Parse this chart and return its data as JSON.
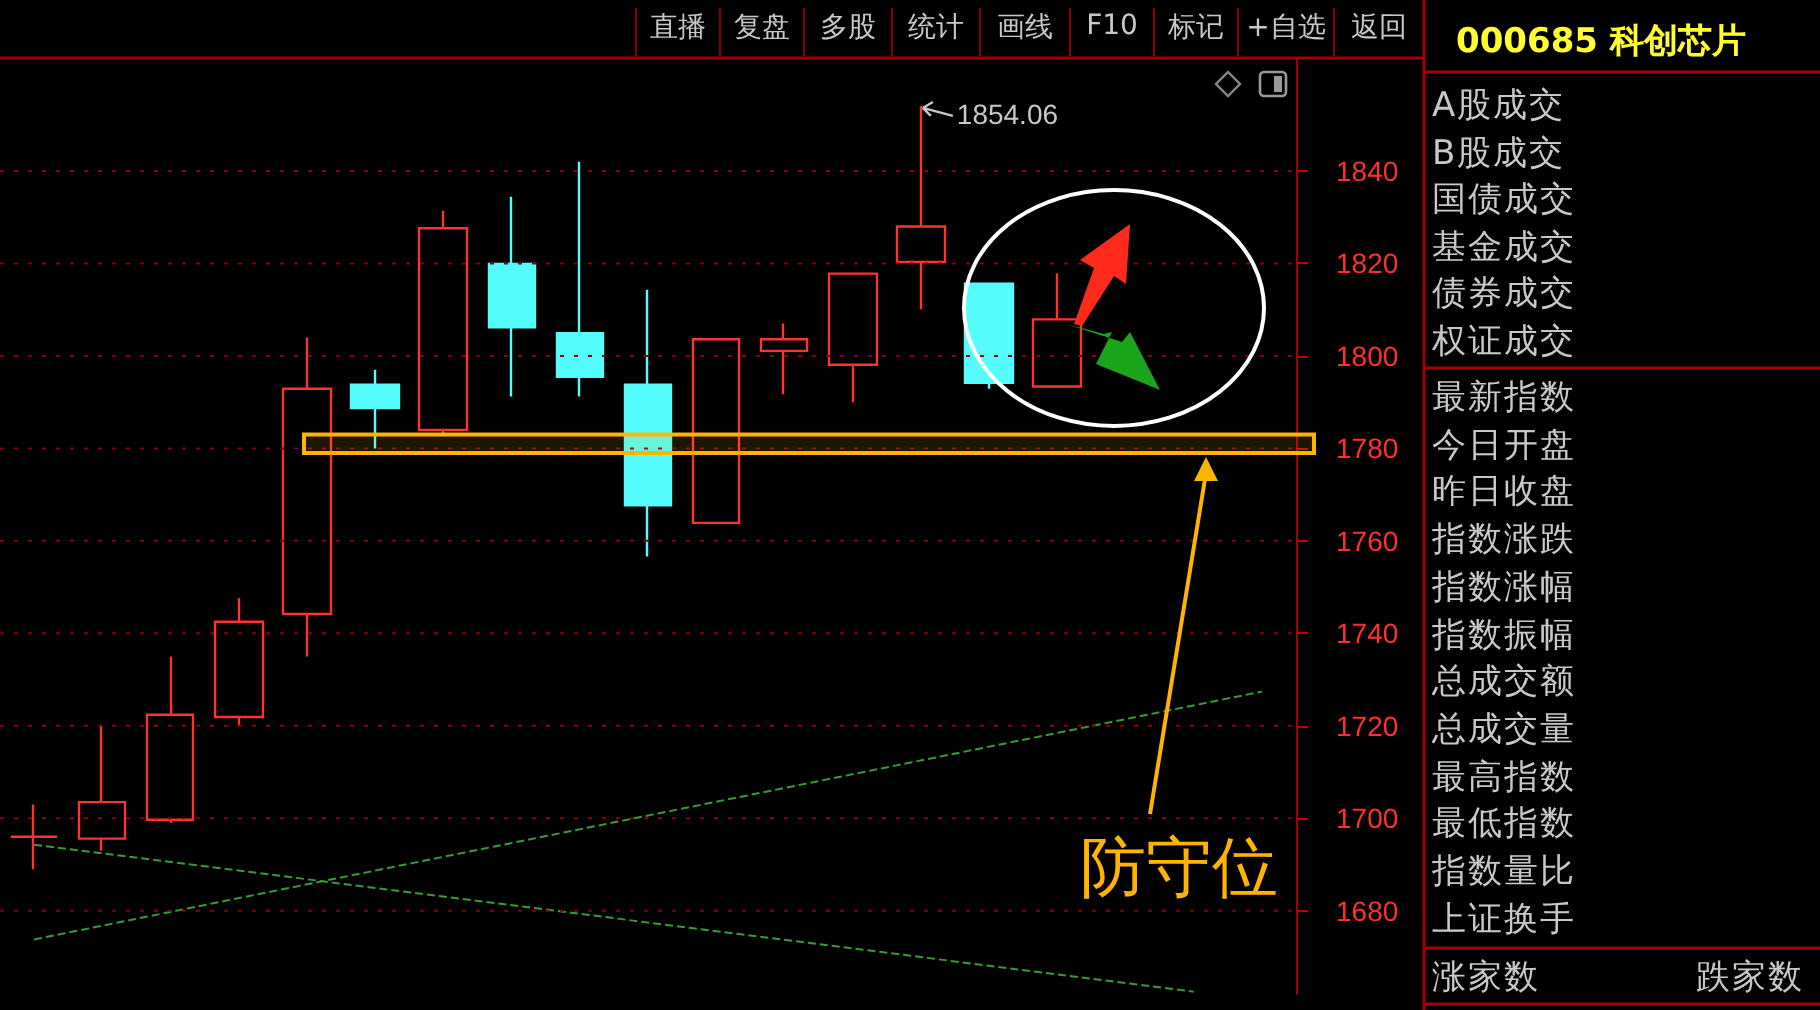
{
  "chart_data": {
    "type": "candlestick",
    "title": "000685 科创芯片",
    "categories": [
      null,
      null,
      null,
      null,
      null,
      null,
      null,
      null,
      null,
      null,
      null,
      null,
      null,
      null,
      null,
      null,
      null,
      null,
      null
    ],
    "ohlc": [
      [
        1696,
        1703,
        1689,
        1696
      ],
      [
        1695.6,
        1720,
        1693,
        1703.5
      ],
      [
        1699.7,
        1735,
        1699,
        1722.4
      ],
      [
        1721.9,
        1747.6,
        1720,
        1742.5
      ],
      [
        1744.2,
        1804,
        1735,
        1792.9
      ],
      [
        1793.8,
        1797,
        1780,
        1788.7
      ],
      [
        1784,
        1831.4,
        1782.7,
        1827.6
      ],
      [
        1819.9,
        1834.4,
        1791.2,
        1806.2
      ],
      [
        1804.9,
        1842,
        1791.2,
        1795.5
      ],
      [
        1793.8,
        1814.3,
        1756.6,
        1767.7
      ],
      [
        1763.9,
        1803.6,
        1763.9,
        1803.6
      ],
      [
        1801.1,
        1807,
        1791.7,
        1803.6
      ],
      [
        1798.1,
        1818,
        1790,
        1817.8
      ],
      [
        1820.3,
        1854.06,
        1810.1,
        1828
      ],
      [
        1815.6,
        1815.6,
        1792.9,
        1794.2
      ],
      [
        1793.4,
        1817.8,
        1793.4,
        1807.9
      ],
      null,
      null,
      null
    ],
    "colors": [
      "#ff3232",
      "#ff3232",
      "#ff3232",
      "#ff3232",
      "#ff3232",
      "#54fcfc",
      "#ff3232",
      "#54fcfc",
      "#54fcfc",
      "#54fcfc",
      "#ff3232",
      "#ff3232",
      "#ff3232",
      "#ff3232",
      "#54fcfc",
      "#ff3232",
      null,
      null,
      null
    ],
    "series": [
      {
        "type": "line",
        "color": "#3a9a3a",
        "line_style": "dashed",
        "values": [
          1673.8,
          null,
          null,
          null,
          null,
          null,
          null,
          null,
          null,
          null,
          null,
          null,
          null,
          null,
          null,
          null,
          null,
          null,
          1727.4
        ]
      },
      {
        "type": "line",
        "color": "#3a9a3a",
        "line_style": "dashed",
        "values": [
          1694.3,
          null,
          null,
          null,
          null,
          null,
          null,
          null,
          null,
          null,
          null,
          null,
          null,
          null,
          null,
          null,
          null,
          1662.5,
          null
        ]
      }
    ],
    "ylim": [
      1662,
      1864
    ],
    "yticks": [
      1680,
      1700,
      1720,
      1740,
      1760,
      1780,
      1800,
      1820,
      1840
    ],
    "grid": "y",
    "bands": [
      {
        "axis": "y",
        "from": 1779,
        "to": 1783,
        "label": "防守位",
        "color": "#ffb400"
      }
    ],
    "annotations": [
      "直播",
      "复盘",
      "多股",
      "统计",
      "画线",
      "F10",
      "标记",
      "+自选",
      "返回",
      "A股成交",
      "B股成交",
      "国债成交",
      "基金成交",
      "债券成交",
      "权证成交",
      "最新指数",
      "今日开盘",
      "昨日收盘",
      "指数涨跌",
      "指数涨幅",
      "指数振幅",
      "总成交额",
      "总成交量",
      "最高指数",
      "最低指数",
      "指数量比",
      "上证换手",
      "涨家数",
      "跌家数",
      "1854.06"
    ]
  }
}
